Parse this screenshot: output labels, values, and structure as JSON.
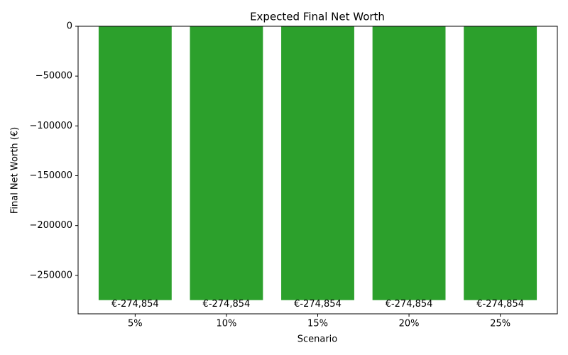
{
  "chart_data": {
    "type": "bar",
    "title": "Expected Final Net Worth",
    "x_label": "Scenario",
    "y_label": "Final Net Worth (€)",
    "categories": [
      "5%",
      "10%",
      "15%",
      "20%",
      "25%"
    ],
    "values": [
      -274854,
      -274854,
      -274854,
      -274854,
      -274854
    ],
    "value_labels": [
      "€-274,854",
      "€-274,854",
      "€-274,854",
      "€-274,854",
      "€-274,854"
    ],
    "color": "#2ca02c",
    "ylim": [
      -288597,
      0
    ],
    "yticks": [
      0,
      {
        "value": -50000,
        "label": "−50000"
      },
      {
        "value": -100000,
        "label": "−100000"
      },
      {
        "value": -150000,
        "label": "−150000"
      },
      {
        "value": -200000,
        "label": "−200000"
      },
      {
        "value": -250000,
        "label": "−250000"
      }
    ],
    "grid": false
  }
}
